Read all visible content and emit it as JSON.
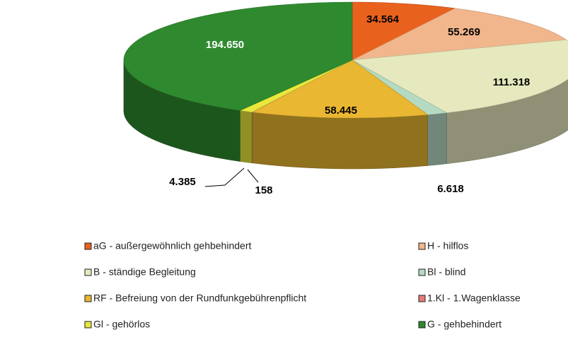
{
  "chart_data": {
    "type": "pie",
    "categories": [
      "aG - außergewöhnlich gehbehindert",
      "H - hilflos",
      "B - ständige Begleitung",
      "Bl - blind",
      "RF - Befreiung von der Rundfunkgebührenpflicht",
      "1.Kl - 1.Wagenklasse",
      "Gl - gehörlos",
      "G - gehbehindert"
    ],
    "values": [
      34564,
      55269,
      111318,
      6618,
      58445,
      158,
      4385,
      194650
    ],
    "value_labels": [
      "34.564",
      "55.269",
      "111.318",
      "6.618",
      "58.445",
      "158",
      "4.385",
      "194.650"
    ],
    "colors": [
      "#e8621e",
      "#f1b68c",
      "#e6e9bd",
      "#b5dac3",
      "#e9b731",
      "#e87a7a",
      "#e8e83c",
      "#2f8a2f"
    ],
    "legend": "bottom"
  }
}
